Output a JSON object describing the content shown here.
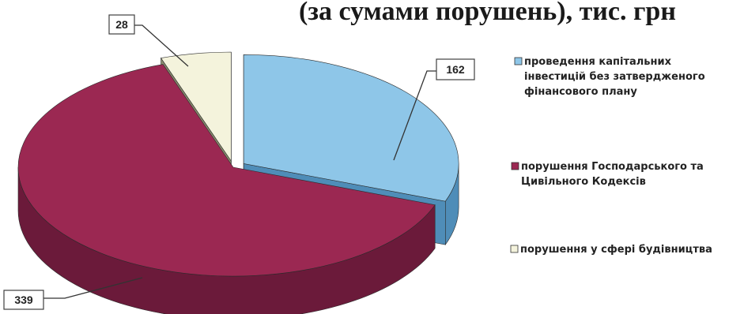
{
  "chart_data": {
    "type": "pie",
    "title": "(за сумами порушень), тис. грн",
    "slices": [
      {
        "label": "проведення капітальних інвестицій без затвердженого фінансового плану",
        "value": 162,
        "color": "#8ec6e8",
        "side_color": "#4f8db8"
      },
      {
        "label": "порушення Господарського та Цивільного Кодексів",
        "value": 339,
        "color": "#9b2852",
        "side_color": "#6b1a3a"
      },
      {
        "label": "порушення у сфері будівництва",
        "value": 28,
        "color": "#f4f3dc",
        "side_color": "#8a8c6e"
      }
    ],
    "value_labels": [
      "162",
      "339",
      "28"
    ],
    "legend_lines": [
      [
        "проведення капітальних",
        "інвестицій без затвердженого",
        "фінансового плану"
      ],
      [
        "порушення Господарського та",
        "Цивільного Кодексів"
      ],
      [
        "порушення у сфері будівництва"
      ]
    ],
    "legend_placement": "right"
  }
}
